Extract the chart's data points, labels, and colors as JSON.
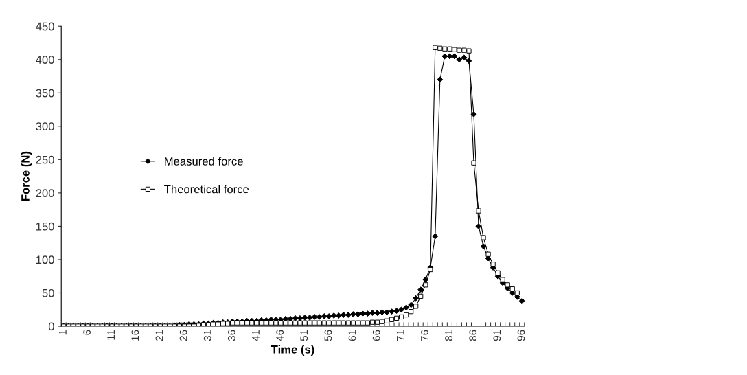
{
  "chart_data": {
    "type": "line",
    "xlabel": "Time (s)",
    "ylabel": "Force (N)",
    "categories": [
      "1",
      null,
      null,
      null,
      null,
      "6",
      null,
      null,
      null,
      null,
      "11",
      null,
      null,
      null,
      null,
      "16",
      null,
      null,
      null,
      null,
      "21",
      null,
      null,
      null,
      null,
      "26",
      null,
      null,
      null,
      null,
      "31",
      null,
      null,
      null,
      null,
      "36",
      null,
      null,
      null,
      null,
      "41",
      null,
      null,
      null,
      null,
      "46",
      null,
      null,
      null,
      null,
      "51",
      null,
      null,
      null,
      null,
      "56",
      null,
      null,
      null,
      null,
      "61",
      null,
      null,
      null,
      null,
      "66",
      null,
      null,
      null,
      null,
      "71",
      null,
      null,
      null,
      null,
      "76",
      null,
      null,
      null,
      null,
      "81",
      null,
      null,
      null,
      null,
      "86",
      null,
      null,
      null,
      null,
      "91",
      null,
      null,
      null,
      null,
      "96"
    ],
    "series": [
      {
        "name": "Measured force",
        "color": "#000000",
        "marker": "diamond",
        "values": [
          0,
          0,
          0,
          0,
          0,
          0,
          0,
          0,
          0,
          0,
          0,
          0,
          0,
          0,
          0,
          0,
          0,
          0,
          0,
          0,
          0,
          0,
          0,
          1,
          2,
          2,
          3,
          3,
          3,
          4,
          4,
          5,
          5,
          6,
          6,
          7,
          7,
          7,
          8,
          8,
          8,
          9,
          9,
          10,
          10,
          10,
          11,
          11,
          12,
          12,
          13,
          13,
          14,
          14,
          15,
          15,
          16,
          16,
          17,
          17,
          18,
          18,
          19,
          19,
          20,
          20,
          21,
          21,
          22,
          23,
          25,
          28,
          32,
          42,
          55,
          70,
          88,
          135,
          370,
          405,
          405,
          405,
          400,
          403,
          398,
          318,
          150,
          120,
          102,
          88,
          75,
          65,
          57,
          50,
          44,
          38
        ]
      },
      {
        "name": "Theoretical force",
        "color": "#000000",
        "marker": "square",
        "values": [
          0,
          0,
          0,
          0,
          0,
          0,
          0,
          0,
          0,
          0,
          0,
          0,
          0,
          0,
          0,
          0,
          0,
          0,
          0,
          0,
          0,
          0,
          0,
          0,
          0,
          0,
          0,
          0,
          1,
          2,
          2,
          3,
          3,
          4,
          4,
          5,
          5,
          5,
          5,
          5,
          5,
          5,
          5,
          5,
          5,
          5,
          5,
          5,
          5,
          5,
          5,
          5,
          5,
          5,
          5,
          5,
          5,
          5,
          5,
          5,
          5,
          5,
          5,
          5,
          6,
          6,
          7,
          8,
          10,
          12,
          14,
          17,
          22,
          30,
          45,
          62,
          85,
          418,
          417,
          416,
          416,
          415,
          414,
          414,
          413,
          245,
          173,
          133,
          108,
          93,
          80,
          70,
          62,
          56,
          50,
          null
        ]
      }
    ],
    "ylim": [
      0,
      450
    ],
    "yticks": [
      0,
      50,
      100,
      150,
      200,
      250,
      300,
      350,
      400,
      450
    ],
    "legend": "center left",
    "grid": false,
    "line_style": "solid"
  }
}
